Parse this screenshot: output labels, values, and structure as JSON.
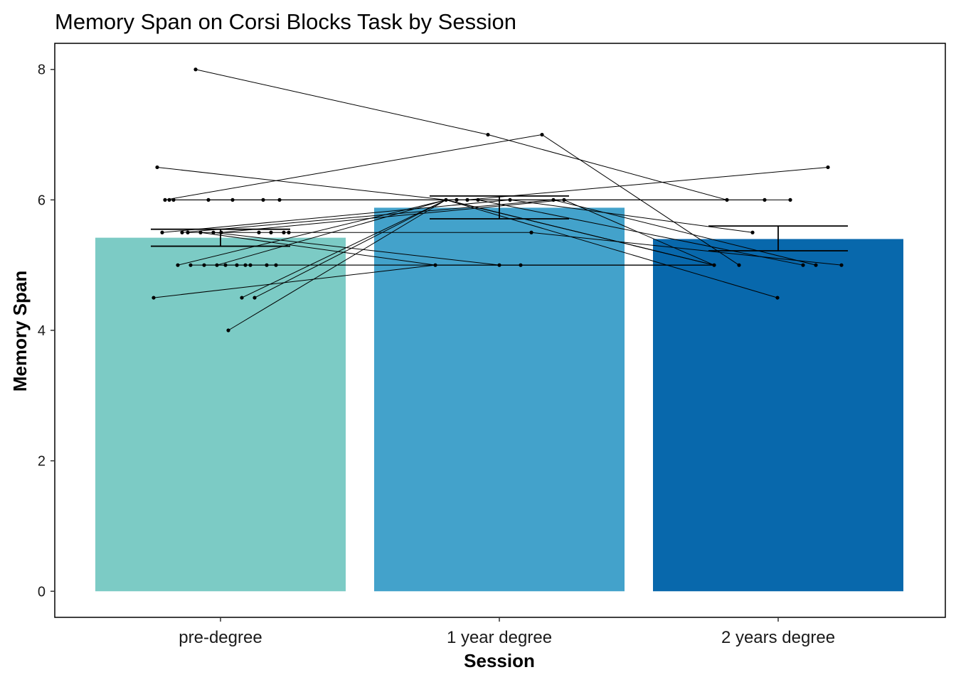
{
  "chart_data": {
    "type": "bar",
    "title": "Memory Span on Corsi Blocks Task by Session",
    "xlabel": "Session",
    "ylabel": "Memory Span",
    "categories": [
      "pre-degree",
      "1 year degree",
      "2 years degree"
    ],
    "values": [
      5.42,
      5.88,
      5.4
    ],
    "error_bars": [
      {
        "low": 5.29,
        "high": 5.55
      },
      {
        "low": 5.71,
        "high": 6.06
      },
      {
        "low": 5.22,
        "high": 5.6
      }
    ],
    "colors": [
      "#7CCBC5",
      "#43A2CB",
      "#0868AC"
    ],
    "ylim": [
      -0.4,
      8.4
    ],
    "yticks": [
      "0",
      "2",
      "4",
      "6",
      "8"
    ],
    "grid": false,
    "legend": "none",
    "subjects": [
      [
        8.0,
        7.0,
        6.0
      ],
      [
        6.5,
        6.0,
        5.0
      ],
      [
        6.0,
        7.0,
        5.0
      ],
      [
        6.0,
        6.0,
        6.0
      ],
      [
        6.0,
        6.0,
        6.5
      ],
      [
        6.0,
        6.0,
        5.0
      ],
      [
        5.5,
        6.0,
        5.5
      ],
      [
        5.5,
        6.0,
        5.0
      ],
      [
        5.5,
        5.5,
        5.0
      ],
      [
        5.5,
        5.0,
        5.0
      ],
      [
        5.5,
        5.0,
        5.0
      ],
      [
        5.5,
        6.0,
        5.0
      ],
      [
        5.0,
        6.0,
        6.0
      ],
      [
        5.0,
        5.0,
        5.0
      ],
      [
        5.0,
        5.0,
        5.0
      ],
      [
        5.0,
        6.0,
        5.0
      ],
      [
        4.5,
        5.0,
        5.0
      ],
      [
        4.5,
        6.0,
        5.0
      ],
      [
        4.5,
        6.0,
        6.0
      ],
      [
        4.0,
        6.0,
        4.5
      ]
    ],
    "subject_points": [
      [
        {
          "x": 275,
          "y": 8.0
        },
        {
          "x": 221,
          "y": 6.5
        },
        {
          "x": 232,
          "y": 6.0
        },
        {
          "x": 238,
          "y": 6.0
        },
        {
          "x": 244,
          "y": 6.0
        },
        {
          "x": 293,
          "y": 6.0
        },
        {
          "x": 327,
          "y": 6.0
        },
        {
          "x": 370,
          "y": 6.0
        },
        {
          "x": 393,
          "y": 6.0
        },
        {
          "x": 228,
          "y": 5.5
        },
        {
          "x": 256,
          "y": 5.5
        },
        {
          "x": 264,
          "y": 5.5
        },
        {
          "x": 282,
          "y": 5.5
        },
        {
          "x": 300,
          "y": 5.5
        },
        {
          "x": 311,
          "y": 5.5
        },
        {
          "x": 364,
          "y": 5.5
        },
        {
          "x": 381,
          "y": 5.5
        },
        {
          "x": 399,
          "y": 5.5
        },
        {
          "x": 406,
          "y": 5.5
        },
        {
          "x": 250,
          "y": 5.0
        },
        {
          "x": 268,
          "y": 5.0
        },
        {
          "x": 287,
          "y": 5.0
        },
        {
          "x": 305,
          "y": 5.0
        },
        {
          "x": 317,
          "y": 5.0
        },
        {
          "x": 333,
          "y": 5.0
        },
        {
          "x": 345,
          "y": 5.0
        },
        {
          "x": 352,
          "y": 5.0
        },
        {
          "x": 375,
          "y": 5.0
        },
        {
          "x": 388,
          "y": 5.0
        },
        {
          "x": 216,
          "y": 4.5
        },
        {
          "x": 340,
          "y": 4.5
        },
        {
          "x": 358,
          "y": 4.5
        },
        {
          "x": 321,
          "y": 4.0
        }
      ],
      [
        {
          "x": 686,
          "y": 7.0
        },
        {
          "x": 762,
          "y": 7.0
        },
        {
          "x": 627,
          "y": 6.0
        },
        {
          "x": 642,
          "y": 6.0
        },
        {
          "x": 657,
          "y": 6.0
        },
        {
          "x": 672,
          "y": 6.0
        },
        {
          "x": 717,
          "y": 6.0
        },
        {
          "x": 778,
          "y": 6.0
        },
        {
          "x": 793,
          "y": 6.0
        },
        {
          "x": 747,
          "y": 5.5
        },
        {
          "x": 612,
          "y": 5.0
        },
        {
          "x": 702,
          "y": 5.0
        },
        {
          "x": 732,
          "y": 5.0
        }
      ],
      [
        {
          "x": 1164,
          "y": 6.5
        },
        {
          "x": 1022,
          "y": 6.0
        },
        {
          "x": 1075,
          "y": 6.0
        },
        {
          "x": 1111,
          "y": 6.0
        },
        {
          "x": 1058,
          "y": 5.5
        },
        {
          "x": 1004,
          "y": 5.0
        },
        {
          "x": 1039,
          "y": 5.0
        },
        {
          "x": 1129,
          "y": 5.0
        },
        {
          "x": 1147,
          "y": 5.0
        },
        {
          "x": 1183,
          "y": 5.0
        },
        {
          "x": 1093,
          "y": 4.5
        }
      ]
    ]
  }
}
